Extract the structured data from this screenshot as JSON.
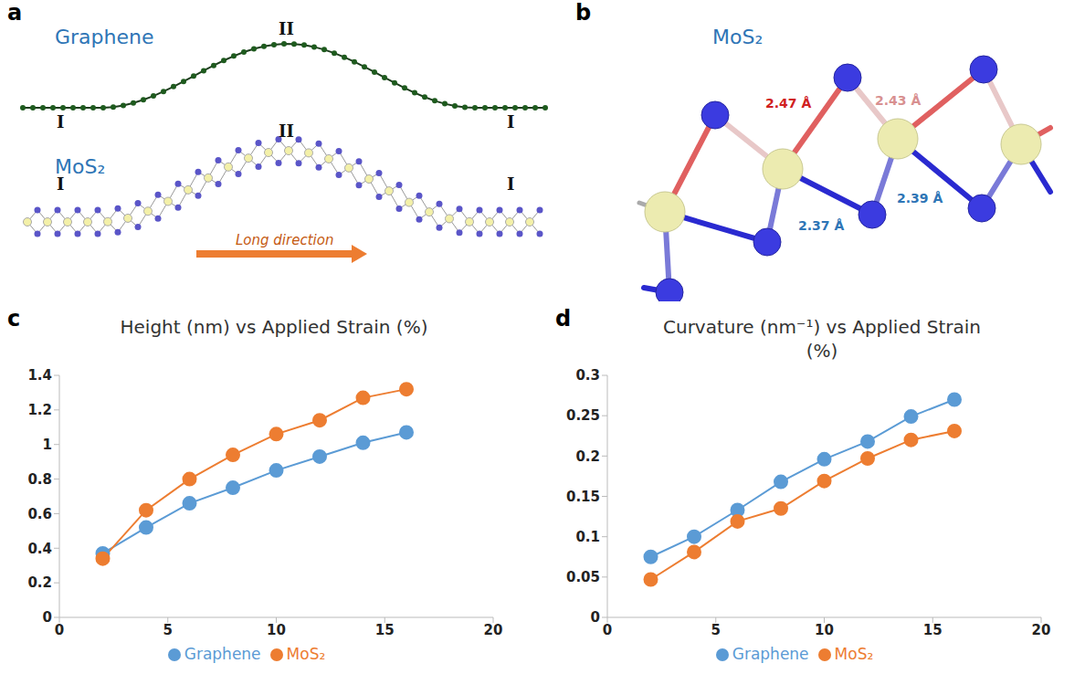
{
  "panel_labels": [
    "a",
    "b",
    "c",
    "d"
  ],
  "diagrams": {
    "a": {
      "top_material": "Graphene",
      "bottom_material": "MoS₂",
      "region_labels": [
        "I",
        "II",
        "I"
      ],
      "arrow_label": "Long direction"
    },
    "b": {
      "material": "MoS₂",
      "bond_lengths": [
        "2.47 Å",
        "2.43 Å",
        "2.37 Å",
        "2.39 Å"
      ]
    }
  },
  "chart_data": [
    {
      "type": "line",
      "title": "Height (nm) vs Applied Strain (%)",
      "x": [
        2,
        4,
        6,
        8,
        10,
        12,
        14,
        16
      ],
      "xlim": [
        0,
        20
      ],
      "xticks": [
        0,
        5,
        10,
        15,
        20
      ],
      "ylim": [
        0,
        1.4
      ],
      "yticks": [
        0,
        0.2,
        0.4,
        0.6,
        0.8,
        1,
        1.2,
        1.4
      ],
      "grid": false,
      "legend": "bottom",
      "series": [
        {
          "name": "Graphene",
          "color": "#5b9bd5",
          "marker": "circle",
          "values": [
            0.37,
            0.52,
            0.66,
            0.75,
            0.85,
            0.93,
            1.01,
            1.07
          ]
        },
        {
          "name": "MoS₂",
          "color": "#ed7d31",
          "marker": "circle",
          "values": [
            0.34,
            0.62,
            0.8,
            0.94,
            1.06,
            1.14,
            1.27,
            1.32
          ]
        }
      ]
    },
    {
      "type": "line",
      "title": "Curvature (nm⁻¹) vs Applied Strain (%)",
      "x": [
        2,
        4,
        6,
        8,
        10,
        12,
        14,
        16
      ],
      "xlim": [
        0,
        20
      ],
      "xticks": [
        0,
        5,
        10,
        15,
        20
      ],
      "ylim": [
        0,
        0.3
      ],
      "yticks": [
        0,
        0.05,
        0.1,
        0.15,
        0.2,
        0.25,
        0.3
      ],
      "grid": false,
      "legend": "bottom",
      "series": [
        {
          "name": "Graphene",
          "color": "#5b9bd5",
          "marker": "circle",
          "values": [
            0.075,
            0.1,
            0.133,
            0.168,
            0.196,
            0.218,
            0.249,
            0.27
          ]
        },
        {
          "name": "MoS₂",
          "color": "#ed7d31",
          "marker": "circle",
          "values": [
            0.047,
            0.081,
            0.119,
            0.135,
            0.169,
            0.197,
            0.22,
            0.231
          ]
        }
      ]
    }
  ]
}
